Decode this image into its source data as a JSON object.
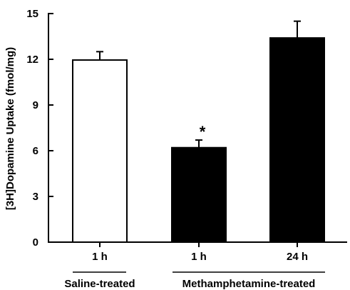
{
  "chart_data": {
    "type": "bar",
    "ylabel": "[3H]Dopamine Uptake (fmol/mg)",
    "ylim": [
      0,
      15
    ],
    "yticks": [
      "0",
      "3",
      "6",
      "9",
      "12",
      "15"
    ],
    "categories": [
      "1 h",
      "1 h",
      "24 h"
    ],
    "values": [
      11.95,
      6.2,
      13.4
    ],
    "errors": [
      0.55,
      0.5,
      1.1
    ],
    "bar_fill": [
      "#ffffff",
      "#000000",
      "#000000"
    ],
    "groups": [
      {
        "label": "Saline-treated",
        "category_indices": [
          0
        ]
      },
      {
        "label": "Methamphetamine-treated",
        "category_indices": [
          1,
          2
        ]
      }
    ],
    "annotations": [
      {
        "text": "*",
        "category_index": 1
      }
    ],
    "grid": false,
    "legend": "none"
  }
}
